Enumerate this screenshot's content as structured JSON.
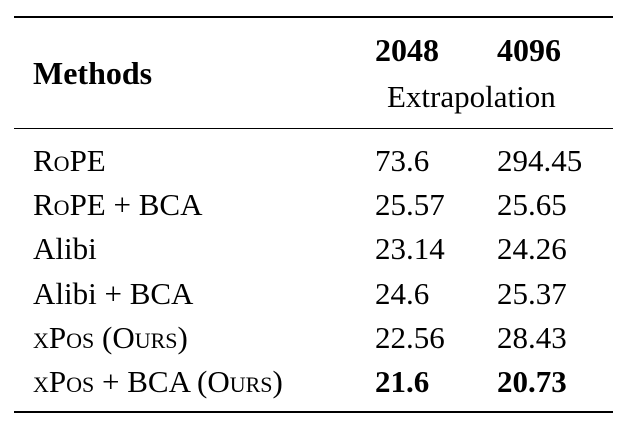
{
  "table": {
    "header": {
      "methods": "Methods",
      "col1": "2048",
      "col2": "4096",
      "subheader": "Extrapolation"
    },
    "rows": [
      {
        "method": "RoPE",
        "v2048": "73.6",
        "v4096": "294.45"
      },
      {
        "method": "RoPE + BCA",
        "v2048": "25.57",
        "v4096": "25.65"
      },
      {
        "method": "Alibi",
        "v2048": "23.14",
        "v4096": "24.26"
      },
      {
        "method": "Alibi + BCA",
        "v2048": "24.6",
        "v4096": "25.37"
      },
      {
        "method": "xPos (Ours)",
        "v2048": "22.56",
        "v4096": "28.43"
      },
      {
        "method": "xPos + BCA (Ours)",
        "v2048": "21.6",
        "v4096": "20.73"
      }
    ]
  }
}
